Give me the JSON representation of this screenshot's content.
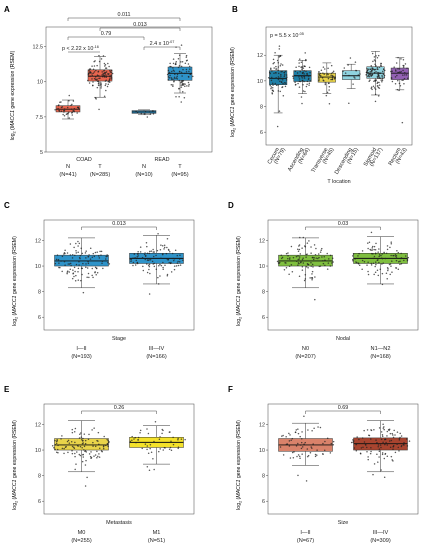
{
  "ylabel_prefix": "log",
  "ylabel_sub": "2",
  "ylabel_gene": "MACC1",
  "ylabel_suffix": " gene expression (RSEM)",
  "chart_data": [
    {
      "panel": "A",
      "type": "box",
      "groups": [
        {
          "label": "N",
          "n": "(N=41)",
          "median": 8.05,
          "q1": 7.85,
          "q3": 8.3,
          "wmin": 7.35,
          "wmax": 8.7,
          "color": "#e8664f",
          "cluster": "COAD"
        },
        {
          "label": "T",
          "n": "(N=285)",
          "median": 10.4,
          "q1": 10.05,
          "q3": 10.85,
          "wmin": 8.9,
          "wmax": 11.8,
          "color": "#e8664f",
          "cluster": "COAD"
        },
        {
          "label": "N",
          "n": "(N=10)",
          "median": 7.85,
          "q1": 7.75,
          "q3": 7.95,
          "wmin": 7.65,
          "wmax": 8.0,
          "color": "#2e93c9",
          "cluster": "READ"
        },
        {
          "label": "T",
          "n": "(N=95)",
          "median": 10.6,
          "q1": 10.1,
          "q3": 11.05,
          "wmin": 9.2,
          "wmax": 12.0,
          "color": "#2e93c9",
          "cluster": "READ"
        }
      ],
      "clusters": [
        "COAD",
        "READ"
      ],
      "ylim": [
        5,
        13.9
      ],
      "yticks": [
        5,
        7.5,
        10,
        12.5
      ],
      "annotations": [
        {
          "text": "p < 2.22 x 10",
          "sup": "-16"
        },
        {
          "text": "2.4 x 10",
          "sup": "-07"
        },
        {
          "text": "0.79"
        },
        {
          "text": "0.013"
        },
        {
          "text": "0.011"
        }
      ]
    },
    {
      "panel": "B",
      "type": "box",
      "xlabel": "T location",
      "p_text": "p = 5.5 x 10",
      "p_sup": "-05",
      "groups": [
        {
          "label": "Cecum",
          "n": "(N=79)",
          "median": 10.2,
          "q1": 9.7,
          "q3": 10.8,
          "wmin": 7.5,
          "wmax": 12.0,
          "color": "#1f7fa6"
        },
        {
          "label": "Ascending",
          "n": "(N=64)",
          "median": 10.4,
          "q1": 9.95,
          "q3": 10.8,
          "wmin": 9.0,
          "wmax": 11.6,
          "color": "#1f7fa6"
        },
        {
          "label": "Transverse",
          "n": "(N=45)",
          "median": 10.3,
          "q1": 9.9,
          "q3": 10.6,
          "wmin": 9.0,
          "wmax": 11.4,
          "color": "#e7d24a"
        },
        {
          "label": "Descending",
          "n": "(N=15)",
          "median": 10.4,
          "q1": 10.1,
          "q3": 10.8,
          "wmin": 9.4,
          "wmax": 11.3,
          "color": "#8fd3df"
        },
        {
          "label": "Sigmoid",
          "n": "(N=137)",
          "median": 10.6,
          "q1": 10.2,
          "q3": 11.1,
          "wmin": 8.9,
          "wmax": 12.3,
          "color": "#8fd3df"
        },
        {
          "label": "Rectum",
          "n": "(N=43)",
          "median": 10.6,
          "q1": 10.1,
          "q3": 11.0,
          "wmin": 9.3,
          "wmax": 11.8,
          "color": "#9361b3"
        }
      ],
      "ylim": [
        5,
        14.2
      ],
      "yticks": [
        6,
        8,
        10,
        12
      ]
    },
    {
      "panel": "C",
      "type": "box",
      "xlabel": "Stage",
      "p_text": "0.013",
      "groups": [
        {
          "label": "I—II",
          "n": "(N=193)",
          "median": 10.4,
          "q1": 10.0,
          "q3": 10.85,
          "wmin": 8.3,
          "wmax": 12.2,
          "color": "#2e93c9"
        },
        {
          "label": "III—IV",
          "n": "(N=166)",
          "median": 10.6,
          "q1": 10.2,
          "q3": 11.0,
          "wmin": 8.6,
          "wmax": 12.4,
          "color": "#2e93c9"
        }
      ],
      "ylim": [
        5,
        13.6
      ],
      "yticks": [
        6,
        8,
        10,
        12
      ]
    },
    {
      "panel": "D",
      "type": "box",
      "xlabel": "Nodal",
      "p_text": "0.03",
      "groups": [
        {
          "label": "N0",
          "n": "(N=207)",
          "median": 10.4,
          "q1": 10.0,
          "q3": 10.85,
          "wmin": 8.3,
          "wmax": 12.2,
          "color": "#7fbf3f"
        },
        {
          "label": "N1—N2",
          "n": "(N=168)",
          "median": 10.6,
          "q1": 10.2,
          "q3": 11.0,
          "wmin": 8.6,
          "wmax": 12.3,
          "color": "#7fbf3f"
        }
      ],
      "ylim": [
        5,
        13.6
      ],
      "yticks": [
        6,
        8,
        10,
        12
      ]
    },
    {
      "panel": "E",
      "type": "box",
      "xlabel": "Metastasis",
      "p_text": "0.26",
      "groups": [
        {
          "label": "M0",
          "n": "(N=255)",
          "median": 10.4,
          "q1": 10.0,
          "q3": 10.9,
          "wmin": 8.3,
          "wmax": 12.3,
          "color": "#e9d44a"
        },
        {
          "label": "M1",
          "n": "(N=51)",
          "median": 10.6,
          "q1": 10.2,
          "q3": 11.0,
          "wmin": 8.9,
          "wmax": 11.9,
          "color": "#f4e22a"
        }
      ],
      "ylim": [
        5,
        13.6
      ],
      "yticks": [
        6,
        8,
        10,
        12
      ]
    },
    {
      "panel": "F",
      "type": "box",
      "xlabel": "Size",
      "p_text": "0.69",
      "groups": [
        {
          "label": "I—II",
          "n": "(N=67)",
          "median": 10.4,
          "q1": 9.9,
          "q3": 10.9,
          "wmin": 8.8,
          "wmax": 12.1,
          "color": "#d9826a"
        },
        {
          "label": "III—IV",
          "n": "(N=309)",
          "median": 10.5,
          "q1": 10.0,
          "q3": 10.95,
          "wmin": 8.3,
          "wmax": 12.3,
          "color": "#a8442f"
        }
      ],
      "ylim": [
        5,
        13.6
      ],
      "yticks": [
        6,
        8,
        10,
        12
      ]
    }
  ]
}
